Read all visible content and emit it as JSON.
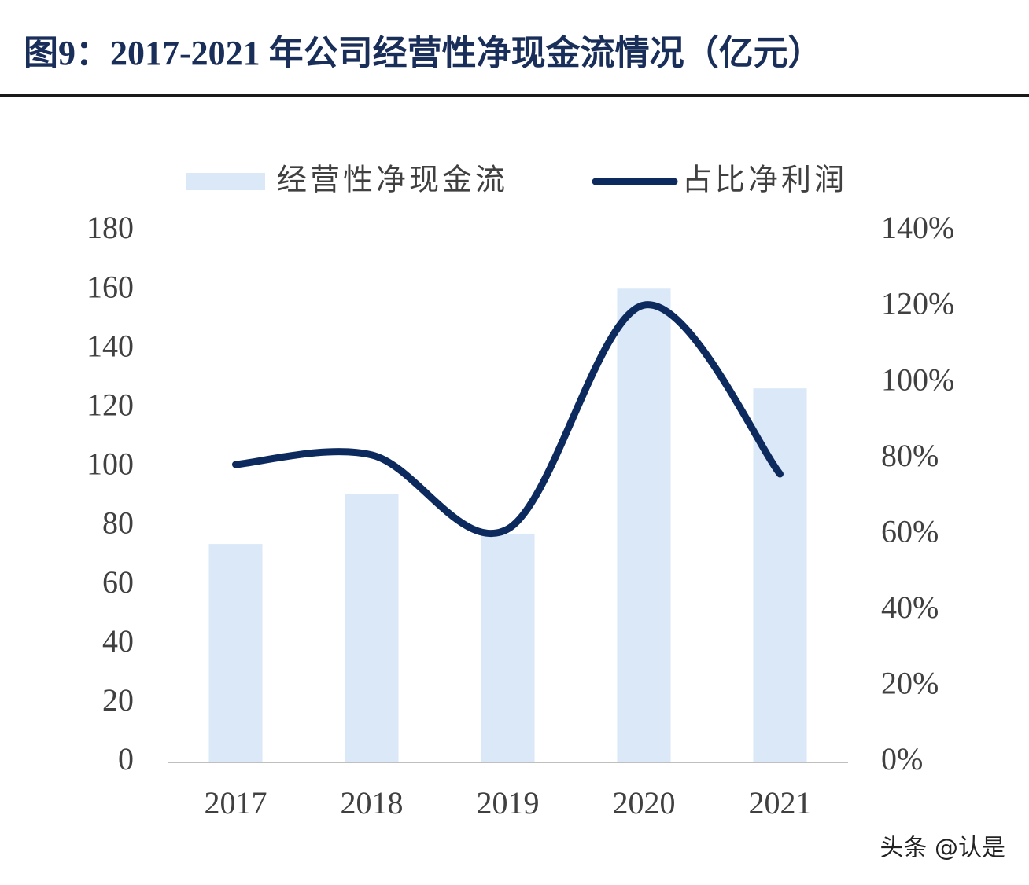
{
  "chart_data": {
    "type": "bar",
    "title": "图9：2017-2021 年公司经营性净现金流情况（亿元）",
    "categories": [
      "2017",
      "2018",
      "2019",
      "2020",
      "2021"
    ],
    "series": [
      {
        "name": "经营性净现金流",
        "type": "bar",
        "color": "#dae8f7",
        "values": [
          74,
          91,
          77.5,
          160.5,
          126.7
        ]
      },
      {
        "name": "占比净利润",
        "type": "line",
        "axis": "y2",
        "color": "#0d2a5e",
        "values": [
          78.5,
          81,
          61.5,
          120.5,
          76
        ]
      }
    ],
    "ylim": [
      0,
      180
    ],
    "yticks": [
      0,
      20,
      40,
      60,
      80,
      100,
      120,
      140,
      160,
      180
    ],
    "y2lim": [
      0,
      140
    ],
    "y2ticks": [
      {
        "value": 0,
        "label": "0%"
      },
      {
        "value": 20,
        "label": "20%"
      },
      {
        "value": 40,
        "label": "40%"
      },
      {
        "value": 60,
        "label": "60%"
      },
      {
        "value": 80,
        "label": "80%"
      },
      {
        "value": 100,
        "label": "100%"
      },
      {
        "value": 120,
        "label": "120%"
      },
      {
        "value": 140,
        "label": "140%"
      }
    ],
    "grid": false,
    "legend": "top"
  },
  "watermark": "头条 @认是"
}
